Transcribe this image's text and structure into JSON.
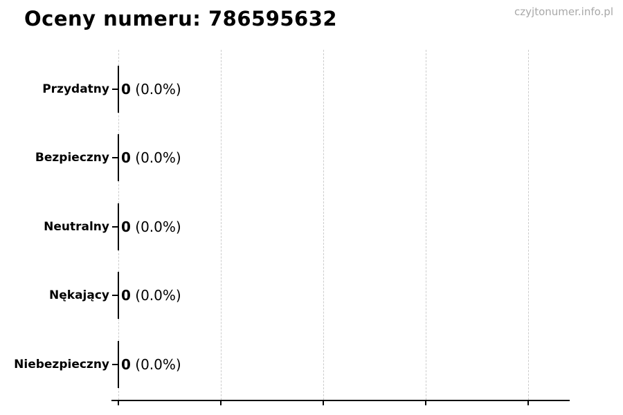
{
  "page": {
    "watermark": "czyjtonumer.info.pl"
  },
  "colors": {
    "background": "#ffffff",
    "text": "#000000",
    "axis": "#000000",
    "grid": "#cccccc",
    "watermark": "#a8a8a8"
  },
  "chart_data": {
    "type": "bar",
    "orientation": "horizontal",
    "title": "Oceny numeru: 786595632",
    "categories": [
      "Przydatny",
      "Bezpieczny",
      "Neutralny",
      "Nękający",
      "Niebezpieczny"
    ],
    "values": [
      0,
      0,
      0,
      0,
      0
    ],
    "percentages": [
      0.0,
      0.0,
      0.0,
      0.0,
      0.0
    ],
    "rows": [
      {
        "label": "Przydatny",
        "count": "0",
        "percent_text": "(0.0%)"
      },
      {
        "label": "Bezpieczny",
        "count": "0",
        "percent_text": "(0.0%)"
      },
      {
        "label": "Neutralny",
        "count": "0",
        "percent_text": "(0.0%)"
      },
      {
        "label": "Nękający",
        "count": "0",
        "percent_text": "(0.0%)"
      },
      {
        "label": "Niebezpieczny",
        "count": "0",
        "percent_text": "(0.0%)"
      }
    ],
    "xlabel": "",
    "ylabel": "",
    "x_tick_labels": [],
    "x_tick_count": 5,
    "grid": "vertical-dashed",
    "legend_position": "none",
    "bar_values_shown_as": "count (percent)"
  }
}
